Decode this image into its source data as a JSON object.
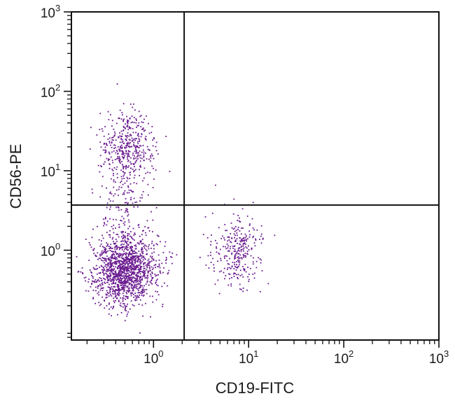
{
  "chart_data": {
    "type": "scatter",
    "title": "",
    "xlabel": "CD19-FITC",
    "ylabel": "CD56-PE",
    "x_scale": "log",
    "y_scale": "log",
    "xlim": [
      0.137,
      1000
    ],
    "ylim": [
      0.074,
      1000
    ],
    "x_ticks": [
      {
        "value": 1,
        "base": "10",
        "exp": "0"
      },
      {
        "value": 10,
        "base": "10",
        "exp": "1"
      },
      {
        "value": 100,
        "base": "10",
        "exp": "2"
      },
      {
        "value": 1000,
        "base": "10",
        "exp": "3"
      }
    ],
    "y_ticks": [
      {
        "value": 1,
        "base": "10",
        "exp": "0"
      },
      {
        "value": 10,
        "base": "10",
        "exp": "1"
      },
      {
        "value": 100,
        "base": "10",
        "exp": "2"
      },
      {
        "value": 1000,
        "base": "10",
        "exp": "3"
      }
    ],
    "quadrant_gate": {
      "x": 2.1,
      "y": 3.7
    },
    "point_color": "#6a1b8f",
    "axis_color": "#111111",
    "grid": false,
    "legend": "none",
    "populations": [
      {
        "center_x": 0.5,
        "center_y": 0.55,
        "spread_x": 0.17,
        "spread_y": 0.22,
        "count": 1450
      },
      {
        "center_x": 0.55,
        "center_y": 20,
        "spread_x": 0.14,
        "spread_y": 0.22,
        "count": 430
      },
      {
        "center_x": 7.5,
        "center_y": 1.0,
        "spread_x": 0.14,
        "spread_y": 0.22,
        "count": 300
      },
      {
        "center_x": 0.5,
        "center_y": 3.5,
        "spread_x": 0.14,
        "spread_y": 0.3,
        "count": 140
      }
    ]
  }
}
